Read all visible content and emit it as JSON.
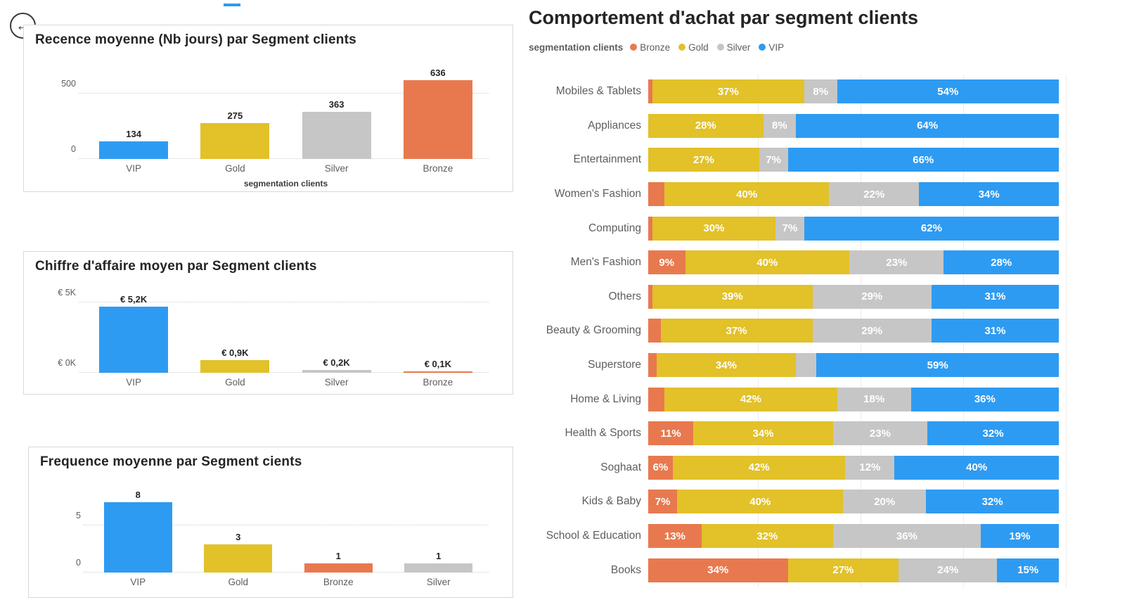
{
  "icons": {
    "back_arrow": "←"
  },
  "colors": {
    "bronze": "#E8794F",
    "gold": "#E2C129",
    "silver": "#C6C6C6",
    "vip": "#2E9BF2"
  },
  "chart_data": [
    {
      "type": "bar",
      "title": "Recence moyenne (Nb jours) par Segment clients",
      "xlabel": "segmentation clients",
      "categories": [
        "VIP",
        "Gold",
        "Silver",
        "Bronze"
      ],
      "values": [
        134,
        275,
        363,
        636
      ],
      "data_labels": [
        "134",
        "275",
        "363",
        "636"
      ],
      "colors": [
        "#2E9BF2",
        "#E2C129",
        "#C6C6C6",
        "#E8794F"
      ],
      "yticks": [
        {
          "label": "500",
          "value": 500
        },
        {
          "label": "0",
          "value": 0
        }
      ],
      "ymax": 700
    },
    {
      "type": "bar",
      "title": "Chiffre d'affaire moyen par Segment clients",
      "xlabel": "",
      "categories": [
        "VIP",
        "Gold",
        "Silver",
        "Bronze"
      ],
      "values": [
        5200,
        900,
        200,
        100
      ],
      "data_labels": [
        "€ 5,2K",
        "€ 0,9K",
        "€ 0,2K",
        "€ 0,1K"
      ],
      "colors": [
        "#2E9BF2",
        "#E2C129",
        "#C6C6C6",
        "#E8794F"
      ],
      "yticks": [
        {
          "label": "€ 5K",
          "value": 5000
        },
        {
          "label": "€ 0K",
          "value": 0
        }
      ],
      "ymax": 5600
    },
    {
      "type": "bar",
      "title": "Frequence moyenne par Segment cients",
      "xlabel": "",
      "categories": [
        "VIP",
        "Gold",
        "Bronze",
        "Silver"
      ],
      "values": [
        8,
        3,
        1,
        1
      ],
      "data_labels": [
        "8",
        "3",
        "1",
        "1"
      ],
      "colors": [
        "#2E9BF2",
        "#E2C129",
        "#E8794F",
        "#C6C6C6"
      ],
      "yticks": [
        {
          "label": "5",
          "value": 5
        },
        {
          "label": "0",
          "value": 0
        }
      ],
      "ymax": 8.8
    },
    {
      "type": "stacked-bar-horizontal",
      "title": "Comportement d'achat par segment clients",
      "legend_title": "segmentation clients",
      "series": [
        {
          "name": "Bronze",
          "color": "#E8794F"
        },
        {
          "name": "Gold",
          "color": "#E2C129"
        },
        {
          "name": "Silver",
          "color": "#C6C6C6"
        },
        {
          "name": "VIP",
          "color": "#2E9BF2"
        }
      ],
      "rows": [
        {
          "category": "Mobiles & Tablets",
          "values": [
            1,
            37,
            8,
            54
          ],
          "labels": [
            "",
            "37%",
            "8%",
            "54%"
          ]
        },
        {
          "category": "Appliances",
          "values": [
            0,
            28,
            8,
            64
          ],
          "labels": [
            "",
            "28%",
            "8%",
            "64%"
          ]
        },
        {
          "category": "Entertainment",
          "values": [
            0,
            27,
            7,
            66
          ],
          "labels": [
            "",
            "27%",
            "7%",
            "66%"
          ]
        },
        {
          "category": "Women's Fashion",
          "values": [
            4,
            40,
            22,
            34
          ],
          "labels": [
            "",
            "40%",
            "22%",
            "34%"
          ]
        },
        {
          "category": "Computing",
          "values": [
            1,
            30,
            7,
            62
          ],
          "labels": [
            "",
            "30%",
            "7%",
            "62%"
          ]
        },
        {
          "category": "Men's Fashion",
          "values": [
            9,
            40,
            23,
            28
          ],
          "labels": [
            "9%",
            "40%",
            "23%",
            "28%"
          ]
        },
        {
          "category": "Others",
          "values": [
            1,
            39,
            29,
            31
          ],
          "labels": [
            "",
            "39%",
            "29%",
            "31%"
          ]
        },
        {
          "category": "Beauty & Grooming",
          "values": [
            3,
            37,
            29,
            31
          ],
          "labels": [
            "",
            "37%",
            "29%",
            "31%"
          ]
        },
        {
          "category": "Superstore",
          "values": [
            2,
            34,
            5,
            59
          ],
          "labels": [
            "",
            "34%",
            "",
            "59%"
          ]
        },
        {
          "category": "Home & Living",
          "values": [
            4,
            42,
            18,
            36
          ],
          "labels": [
            "",
            "42%",
            "18%",
            "36%"
          ]
        },
        {
          "category": "Health & Sports",
          "values": [
            11,
            34,
            23,
            32
          ],
          "labels": [
            "11%",
            "34%",
            "23%",
            "32%"
          ]
        },
        {
          "category": "Soghaat",
          "values": [
            6,
            42,
            12,
            40
          ],
          "labels": [
            "6%",
            "42%",
            "12%",
            "40%"
          ]
        },
        {
          "category": "Kids & Baby",
          "values": [
            7,
            40,
            20,
            32
          ],
          "labels": [
            "7%",
            "40%",
            "20%",
            "32%"
          ]
        },
        {
          "category": "School & Education",
          "values": [
            13,
            32,
            36,
            19
          ],
          "labels": [
            "13%",
            "32%",
            "36%",
            "19%"
          ]
        },
        {
          "category": "Books",
          "values": [
            34,
            27,
            24,
            15
          ],
          "labels": [
            "34%",
            "27%",
            "24%",
            "15%"
          ]
        }
      ]
    }
  ]
}
